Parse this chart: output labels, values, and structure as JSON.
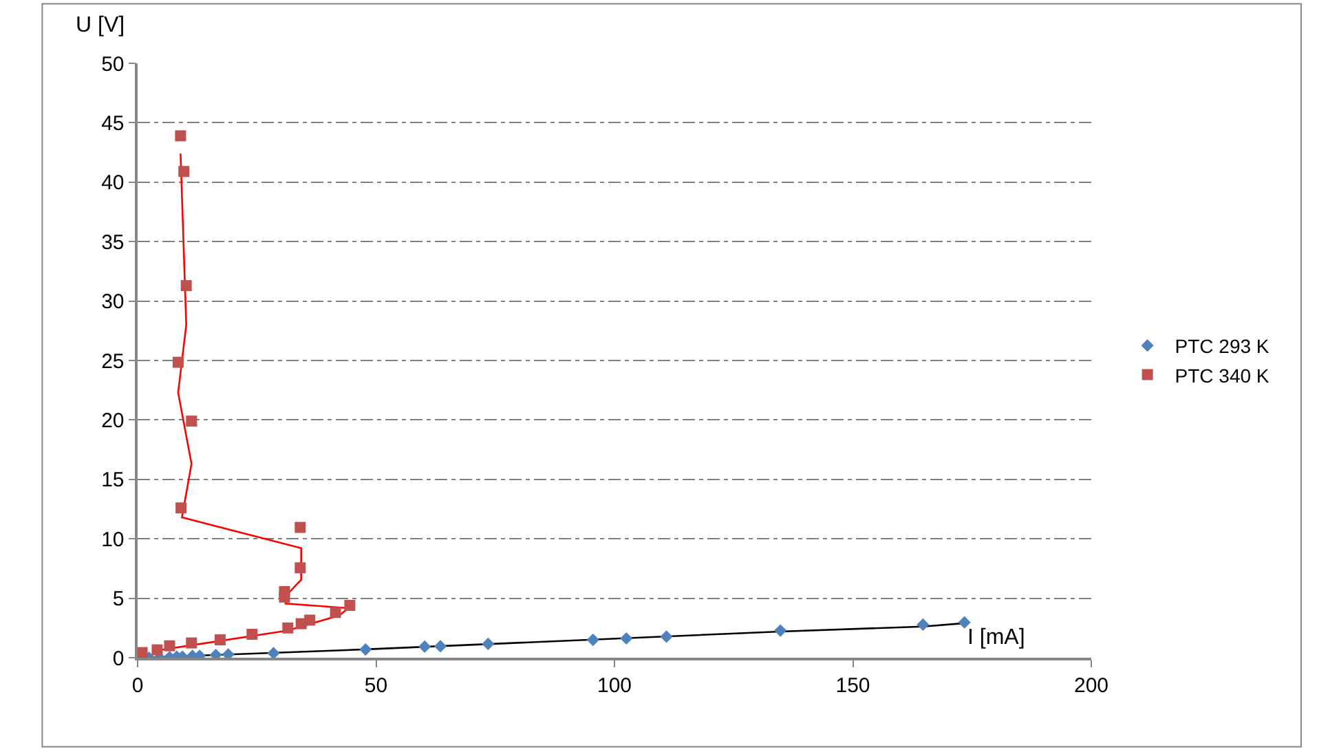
{
  "chart_data": {
    "type": "scatter",
    "xlabel": "I [mA]",
    "ylabel": "U [V]",
    "xlim": [
      0,
      200
    ],
    "ylim": [
      0,
      50
    ],
    "xticks": [
      0,
      50,
      100,
      150,
      200
    ],
    "yticks": [
      0,
      5,
      10,
      15,
      20,
      25,
      30,
      35,
      40,
      45,
      50
    ],
    "grid": "y",
    "legend": "right",
    "series": [
      {
        "name": "PTC 293 K",
        "color": "#4f81bd",
        "marker": "diamond",
        "x": [
          2.4,
          4.6,
          6.7,
          8.2,
          9.4,
          11.5,
          13,
          16.4,
          19,
          28.5,
          47.8,
          60.2,
          63.5,
          73.5,
          95.5,
          102.5,
          110.9,
          134.8,
          164.7,
          173.4
        ],
        "values": [
          0,
          0,
          0.04,
          0.08,
          0.08,
          0.15,
          0.15,
          0.23,
          0.27,
          0.38,
          0.69,
          0.93,
          0.96,
          1.16,
          1.5,
          1.62,
          1.77,
          2.28,
          2.78,
          2.97
        ]
      },
      {
        "name": "PTC 340 K",
        "color": "#c0504d",
        "marker": "square",
        "x": [
          0.95,
          4.1,
          6.7,
          11.3,
          17.3,
          24,
          31.5,
          34.3,
          36.1,
          41.5,
          44.5,
          30.8,
          30.8,
          34.1,
          34.1,
          9.1,
          11.3,
          8.5,
          10.2,
          9.7,
          9
        ],
        "values": [
          0.43,
          0.66,
          1,
          1.24,
          1.5,
          1.97,
          2.5,
          2.86,
          3.16,
          3.8,
          4.4,
          5.56,
          5.1,
          7.56,
          10.96,
          12.6,
          19.9,
          24.85,
          31.3,
          40.9,
          43.9
        ]
      },
      {
        "type": "line",
        "color": "#000000",
        "marker": "none",
        "x": [
          2.4,
          47.8,
          134.8,
          164.7,
          173.4
        ],
        "values": [
          0.02,
          0.7,
          2.2,
          2.62,
          2.9
        ]
      },
      {
        "type": "line",
        "color": "#ff0000",
        "marker": "none",
        "x": [
          4.1,
          31.5,
          42.3,
          44.2,
          31,
          31,
          34.3,
          34.3,
          9.3,
          11.3,
          8.5,
          10.2,
          9
        ],
        "values": [
          0.61,
          2.28,
          3.56,
          4.17,
          4.55,
          5.17,
          6.56,
          9.22,
          11.8,
          16.3,
          22.3,
          28,
          42.4
        ]
      }
    ]
  }
}
